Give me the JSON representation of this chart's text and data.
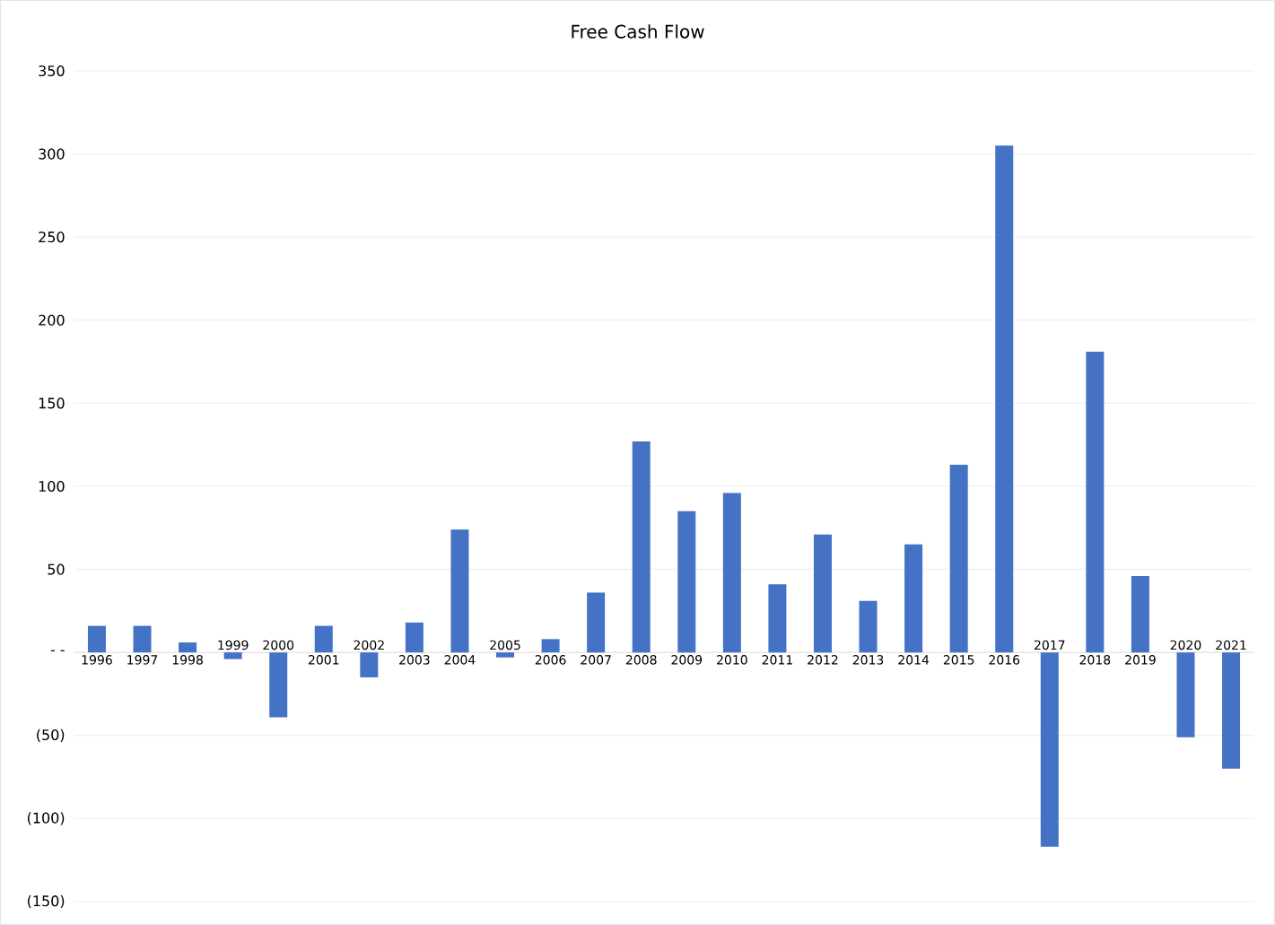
{
  "chart_data": {
    "type": "bar",
    "title": "Free Cash Flow",
    "categories": [
      "1996",
      "1997",
      "1998",
      "1999",
      "2000",
      "2001",
      "2002",
      "2003",
      "2004",
      "2005",
      "2006",
      "2007",
      "2008",
      "2009",
      "2010",
      "2011",
      "2012",
      "2013",
      "2014",
      "2015",
      "2016",
      "2017",
      "2018",
      "2019",
      "2020",
      "2021"
    ],
    "values": [
      16,
      16,
      6,
      -4,
      -39,
      16,
      -15,
      18,
      74,
      -3,
      8,
      36,
      127,
      85,
      96,
      41,
      71,
      31,
      65,
      113,
      305,
      -117,
      181,
      46,
      -51,
      -70
    ],
    "color": "#4472c4",
    "ylim": [
      -150,
      350
    ],
    "yticks": [
      {
        "value": -150,
        "label": "(150)"
      },
      {
        "value": -100,
        "label": "(100)"
      },
      {
        "value": -50,
        "label": "(50)"
      },
      {
        "value": 0,
        "label": "- -"
      },
      50,
      100,
      150,
      200,
      250,
      300,
      350
    ],
    "grid": true
  }
}
